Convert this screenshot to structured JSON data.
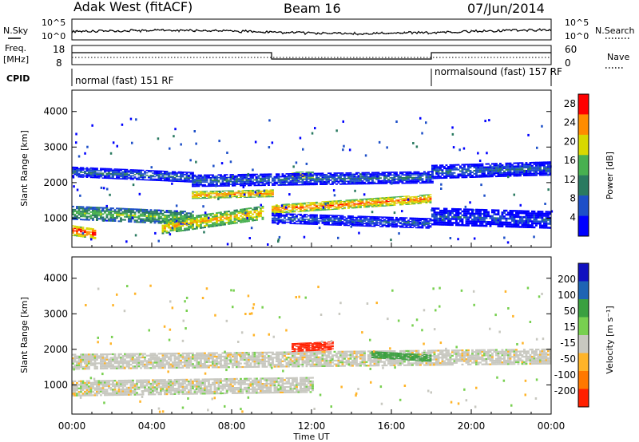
{
  "header": {
    "station": "Adak West (fitACF)",
    "beam": "Beam 16",
    "date": "07/Jun/2014"
  },
  "summary_panel": {
    "left_label": "N.Sky",
    "right_label": "N.Search",
    "left_ticks": [
      "10^5",
      "10^0"
    ],
    "right_ticks": [
      "10^5",
      "10^0"
    ]
  },
  "freq_panel": {
    "left_label_line1": "Freq.",
    "left_label_line2": "[MHz]",
    "left_ticks": [
      "18",
      "8"
    ],
    "right_label": "Nave",
    "right_ticks": [
      "60",
      "0"
    ]
  },
  "cpid_panel": {
    "label": "CPID",
    "modes": [
      {
        "text": "normal (fast) 151 RF",
        "start_hour": 0
      },
      {
        "text": "normalsound (fast) 157 RF",
        "start_hour": 18
      }
    ]
  },
  "chart_data": [
    {
      "type": "heatmap",
      "name": "power",
      "ylabel": "Slant Range [km]",
      "xlabel": "",
      "xlim": [
        0,
        24
      ],
      "ylim": [
        180,
        4600
      ],
      "yticks": [
        1000,
        2000,
        3000,
        4000
      ],
      "colorbar": {
        "label": "Power [dB]",
        "ticks": [
          4,
          8,
          12,
          16,
          20,
          24,
          28
        ],
        "range": [
          0,
          30
        ],
        "colors": [
          "#0000ff",
          "#1d4fc8",
          "#2a7a60",
          "#48b050",
          "#d8d800",
          "#ff8c00",
          "#ff0000"
        ]
      },
      "echo_bands": [
        {
          "t_start": 0.0,
          "t_end": 1.2,
          "range_center": [
            650,
            550
          ],
          "range_width": 300,
          "power_db": 28
        },
        {
          "t_start": 0.0,
          "t_end": 6.0,
          "range_center": [
            1150,
            1000
          ],
          "range_width": 400,
          "power_db": 16
        },
        {
          "t_start": 4.5,
          "t_end": 9.5,
          "range_center": [
            750,
            1150
          ],
          "range_width": 400,
          "power_db": 22
        },
        {
          "t_start": 6.0,
          "t_end": 10.0,
          "range_center": [
            1650,
            1700
          ],
          "range_width": 220,
          "power_db": 24
        },
        {
          "t_start": 10.0,
          "t_end": 18.0,
          "range_center": [
            1250,
            1550
          ],
          "range_width": 260,
          "power_db": 25
        },
        {
          "t_start": 11.0,
          "t_end": 12.0,
          "range_center": [
            2200,
            2200
          ],
          "range_width": 220,
          "power_db": 22
        },
        {
          "t_start": 0.0,
          "t_end": 6.0,
          "range_center": [
            2300,
            2150
          ],
          "range_width": 300,
          "power_db": 10
        },
        {
          "t_start": 6.0,
          "t_end": 18.0,
          "range_center": [
            2050,
            2150
          ],
          "range_width": 350,
          "power_db": 9
        },
        {
          "t_start": 18.0,
          "t_end": 24.0,
          "range_center": [
            2300,
            2400
          ],
          "range_width": 400,
          "power_db": 9
        },
        {
          "t_start": 18.0,
          "t_end": 24.0,
          "range_center": [
            1050,
            950
          ],
          "range_width": 500,
          "power_db": 7
        },
        {
          "t_start": 10.0,
          "t_end": 18.0,
          "range_center": [
            1000,
            850
          ],
          "range_width": 300,
          "power_db": 8
        }
      ]
    },
    {
      "type": "heatmap",
      "name": "velocity",
      "ylabel": "Slant Range [km]",
      "xlabel": "Time UT",
      "xlim": [
        0,
        24
      ],
      "ylim": [
        180,
        4600
      ],
      "yticks": [
        1000,
        2000,
        3000,
        4000
      ],
      "xticks": [
        "00:00",
        "04:00",
        "08:00",
        "12:00",
        "16:00",
        "20:00",
        "00:00"
      ],
      "colorbar": {
        "label": "Velocity [m s⁻¹]",
        "ticks": [
          200,
          100,
          50,
          15,
          -15,
          -50,
          -100,
          -200
        ],
        "colors": [
          "#1010c0",
          "#1e64b4",
          "#3aa040",
          "#78d050",
          "#c8c8c0",
          "#ffb428",
          "#ff7800",
          "#ff2000"
        ]
      },
      "echo_bands": [
        {
          "t_start": 0.0,
          "t_end": 24.0,
          "range_center": [
            1650,
            1800
          ],
          "range_width": 450,
          "velocity": 0
        },
        {
          "t_start": 0.0,
          "t_end": 12.0,
          "range_center": [
            900,
            1000
          ],
          "range_width": 450,
          "velocity": 0
        },
        {
          "t_start": 11.0,
          "t_end": 13.0,
          "range_center": [
            2050,
            2100
          ],
          "range_width": 250,
          "velocity": -200
        },
        {
          "t_start": 15.0,
          "t_end": 18.0,
          "range_center": [
            1850,
            1750
          ],
          "range_width": 200,
          "velocity": 40
        }
      ]
    }
  ]
}
